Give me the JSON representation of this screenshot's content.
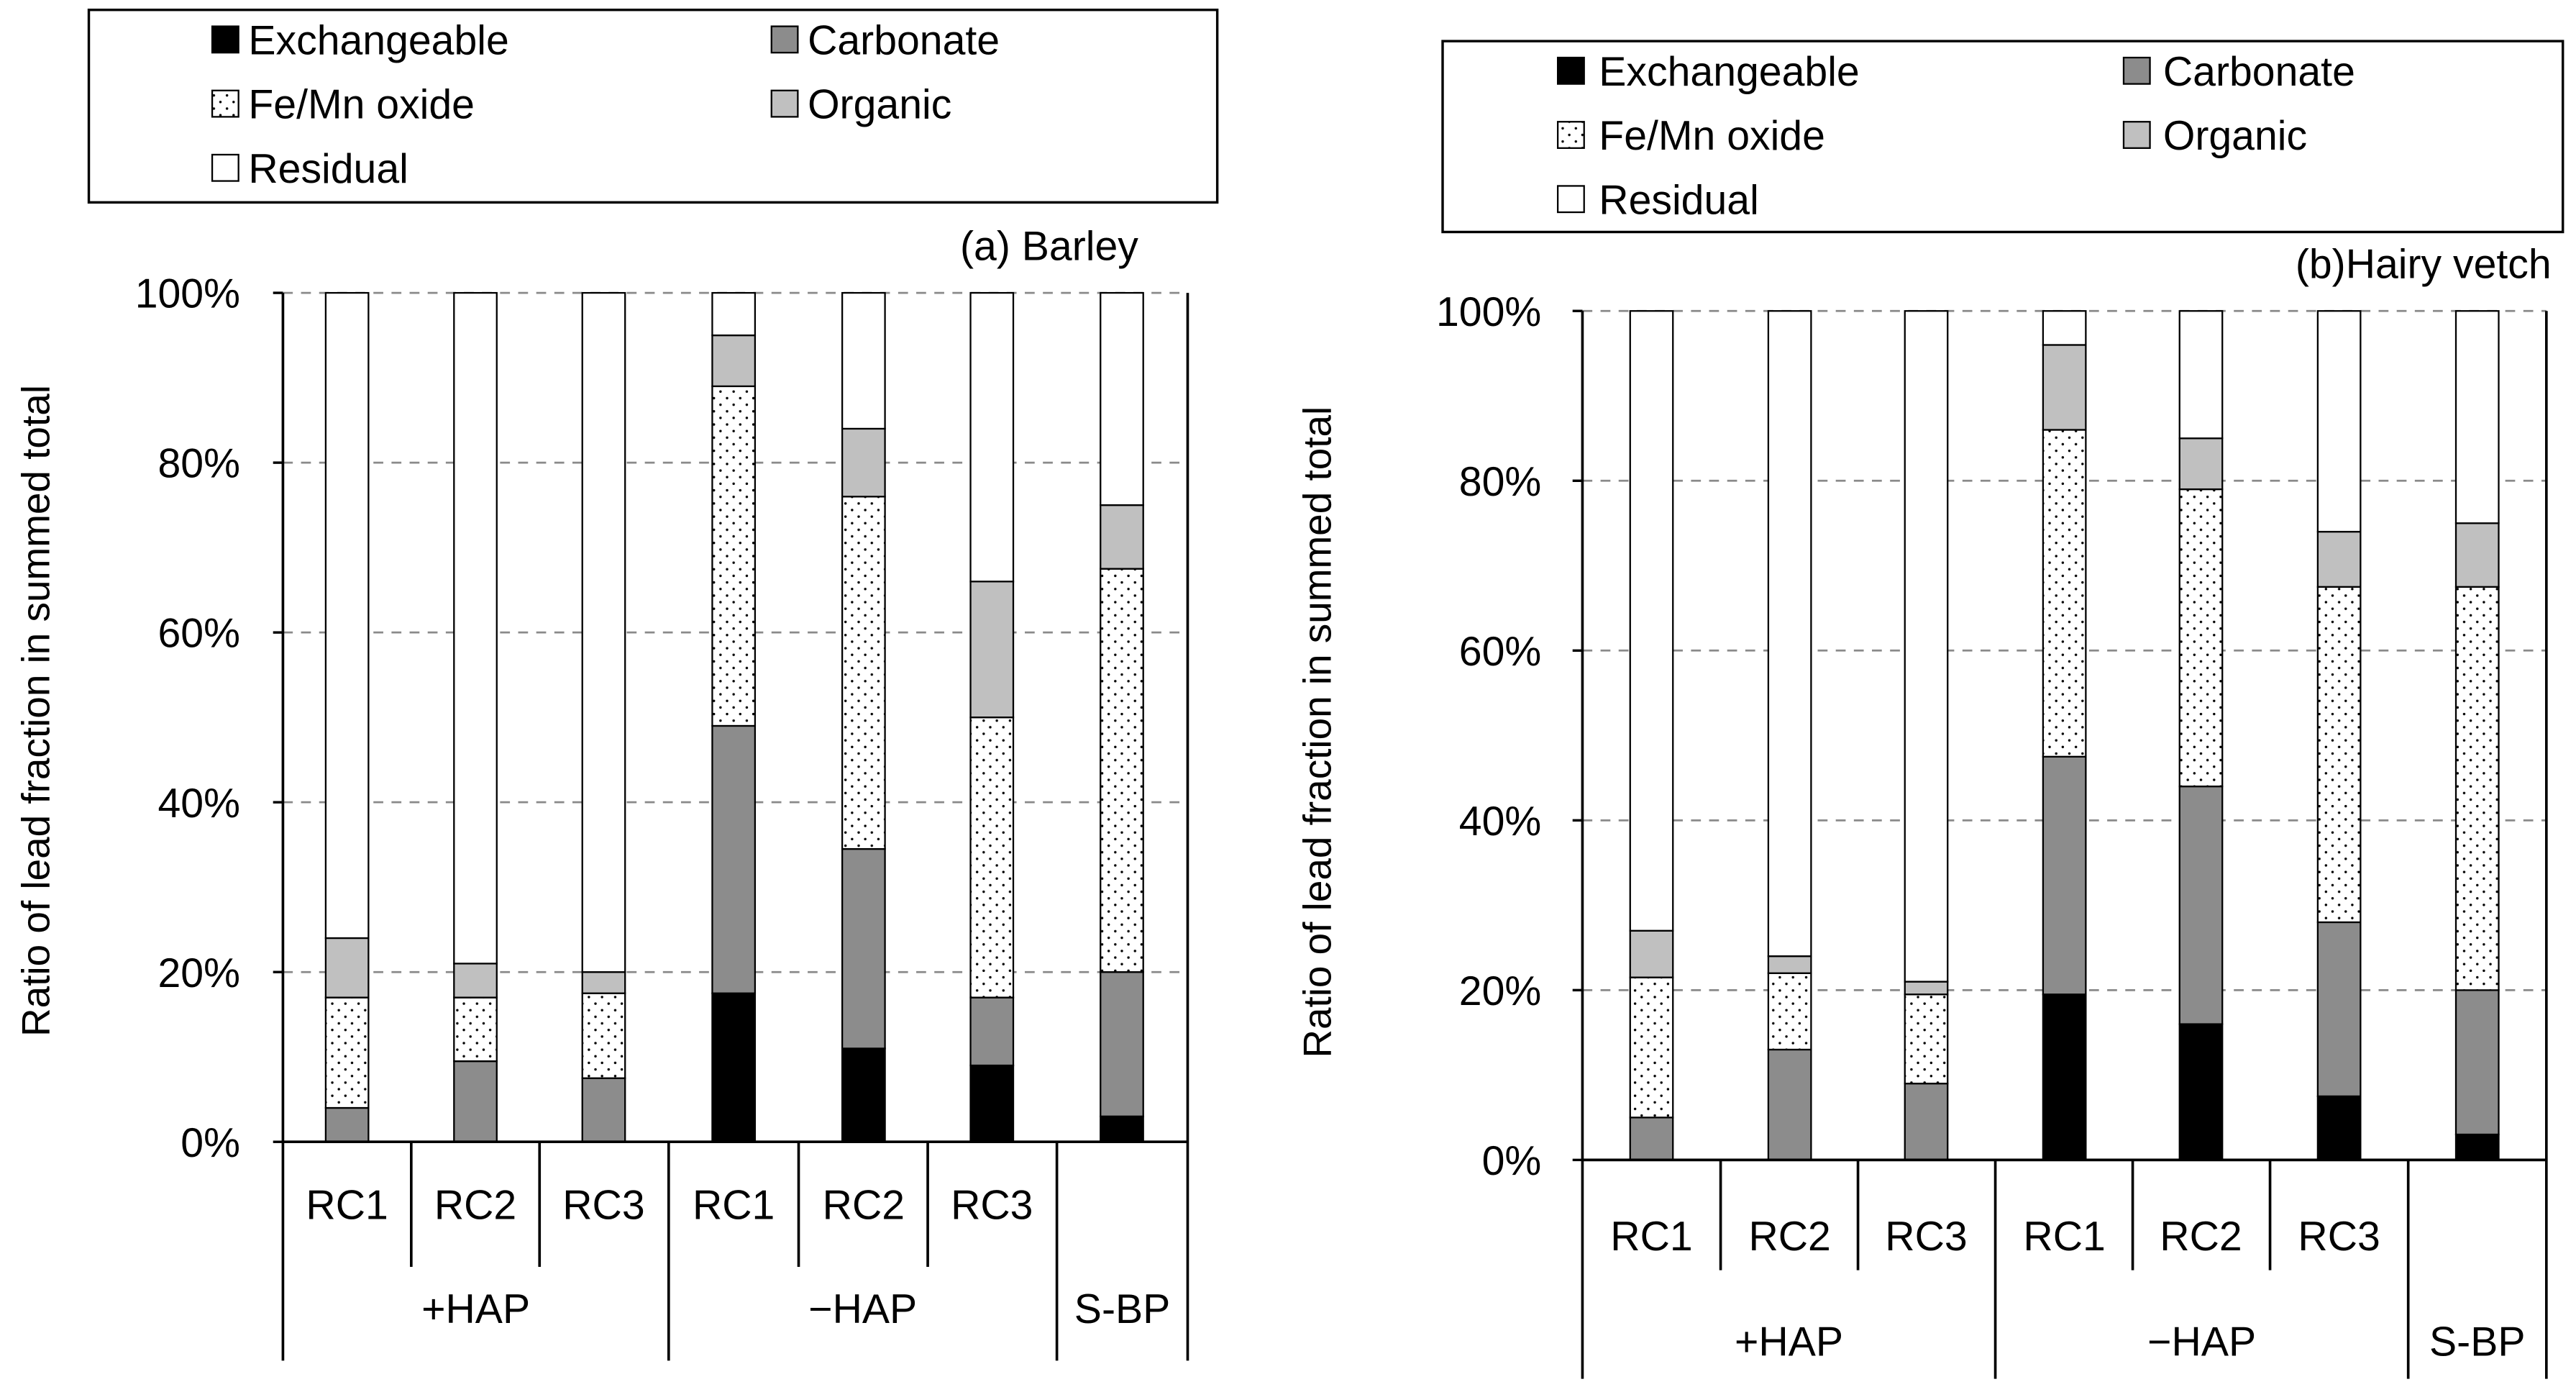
{
  "colors": {
    "exchangeable": "#000000",
    "carbonate": "#8c8c8c",
    "fe_mn_oxide": "#ffffff",
    "organic": "#c0c0c0",
    "residual": "#ffffff",
    "gridline": "#8a8a8a"
  },
  "legend": {
    "exchangeable": "Exchangeable",
    "carbonate": "Carbonate",
    "fe_mn_oxide": "Fe/Mn oxide",
    "organic": "Organic",
    "residual": "Residual"
  },
  "chart_data": [
    {
      "type": "bar",
      "stacked": true,
      "title": "(a) Barley",
      "ylabel": "Ratio of lead fraction in summed total",
      "ylim": [
        0,
        100
      ],
      "yticks": [
        "0%",
        "20%",
        "40%",
        "60%",
        "80%",
        "100%"
      ],
      "grid": true,
      "categories": [
        "RC1",
        "RC2",
        "RC3",
        "RC1",
        "RC2",
        "RC3",
        ""
      ],
      "groups": [
        {
          "label": "+HAP",
          "start": 0,
          "count": 3
        },
        {
          "label": "−HAP",
          "start": 3,
          "count": 3
        },
        {
          "label": "S-BP",
          "start": 6,
          "count": 1
        }
      ],
      "series": [
        {
          "name": "Exchangeable",
          "key": "exchangeable",
          "values": [
            0,
            0,
            0,
            17.5,
            11,
            9,
            3
          ]
        },
        {
          "name": "Carbonate",
          "key": "carbonate",
          "values": [
            4,
            9.5,
            7.5,
            31.5,
            23.5,
            8,
            17
          ]
        },
        {
          "name": "Fe/Mn oxide",
          "key": "fe_mn_oxide",
          "values": [
            13,
            7.5,
            10,
            40,
            41.5,
            33,
            47.5
          ]
        },
        {
          "name": "Organic",
          "key": "organic",
          "values": [
            7,
            4,
            2.5,
            6,
            8,
            16,
            7.5
          ]
        },
        {
          "name": "Residual",
          "key": "residual",
          "values": [
            76,
            79,
            80,
            5,
            16,
            34,
            25
          ]
        }
      ]
    },
    {
      "type": "bar",
      "stacked": true,
      "title": "(b)Hairy vetch",
      "ylabel": "Ratio of lead fraction in summed total",
      "ylim": [
        0,
        100
      ],
      "yticks": [
        "0%",
        "20%",
        "40%",
        "60%",
        "80%",
        "100%"
      ],
      "grid": true,
      "categories": [
        "RC1",
        "RC2",
        "RC3",
        "RC1",
        "RC2",
        "RC3",
        ""
      ],
      "groups": [
        {
          "label": "+HAP",
          "start": 0,
          "count": 3
        },
        {
          "label": "−HAP",
          "start": 3,
          "count": 3
        },
        {
          "label": "S-BP",
          "start": 6,
          "count": 1
        }
      ],
      "series": [
        {
          "name": "Exchangeable",
          "key": "exchangeable",
          "values": [
            0,
            0,
            0,
            19.5,
            16,
            7.5,
            3
          ]
        },
        {
          "name": "Carbonate",
          "key": "carbonate",
          "values": [
            5,
            13,
            9,
            28,
            28,
            20.5,
            17
          ]
        },
        {
          "name": "Fe/Mn oxide",
          "key": "fe_mn_oxide",
          "values": [
            16.5,
            9,
            10.5,
            38.5,
            35,
            39.5,
            47.5
          ]
        },
        {
          "name": "Organic",
          "key": "organic",
          "values": [
            5.5,
            2,
            1.5,
            10,
            6,
            6.5,
            7.5
          ]
        },
        {
          "name": "Residual",
          "key": "residual",
          "values": [
            73,
            76,
            79,
            4,
            15,
            26,
            25
          ]
        }
      ]
    }
  ]
}
